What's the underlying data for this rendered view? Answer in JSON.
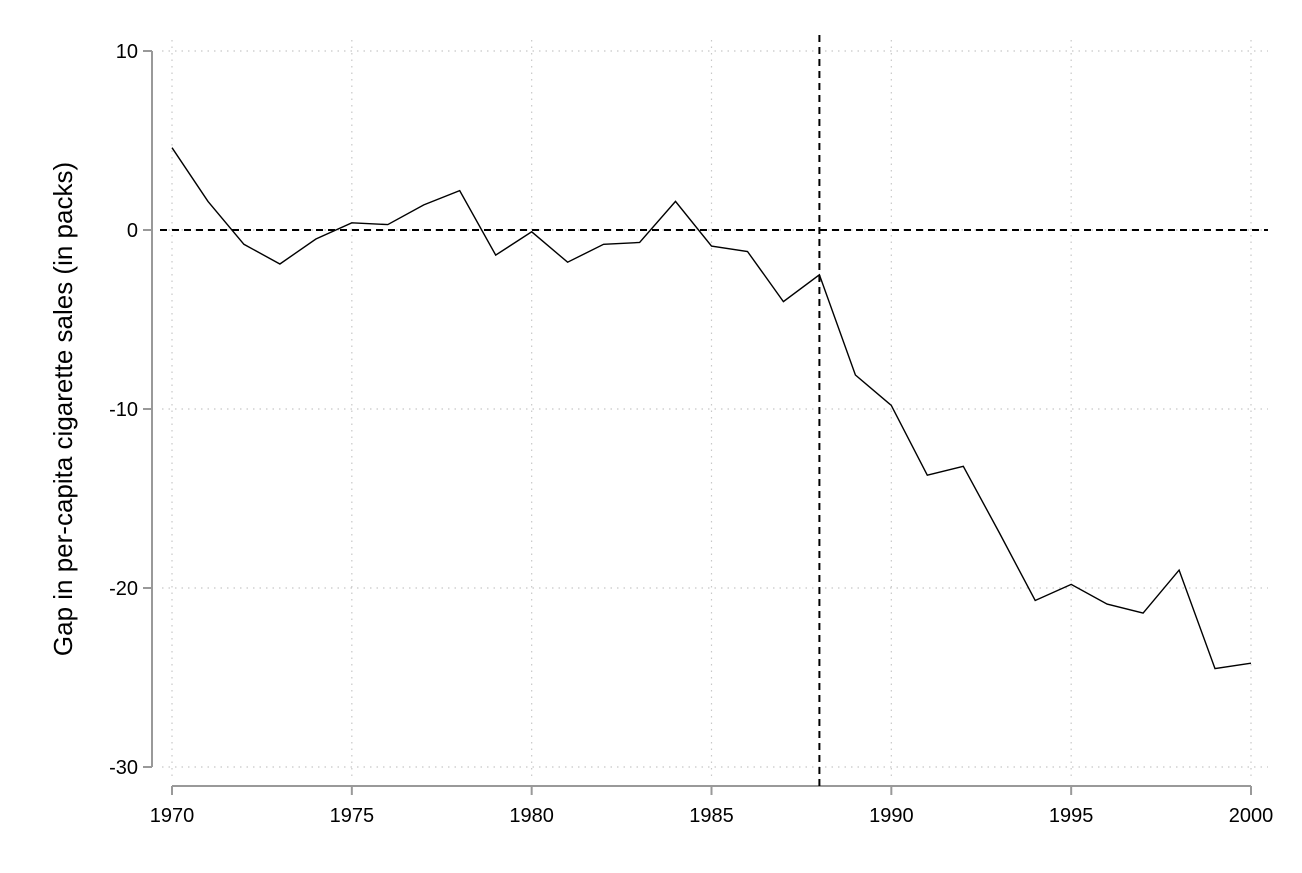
{
  "chart_data": {
    "type": "line",
    "title": "",
    "xlabel": "",
    "ylabel": "Gap in per-capita cigarette sales (in packs)",
    "xlim": [
      1970,
      2000
    ],
    "ylim": [
      -30,
      10
    ],
    "x_ticks": [
      1970,
      1975,
      1980,
      1985,
      1990,
      1995,
      2000
    ],
    "y_ticks": [
      10,
      0,
      -10,
      -20,
      -30
    ],
    "x_tick_labels": [
      "1970",
      "1975",
      "1980",
      "1985",
      "1990",
      "1995",
      "2000"
    ],
    "y_tick_labels": [
      "10",
      "0",
      "-10",
      "-20",
      "-30"
    ],
    "grid": true,
    "series": [
      {
        "x": [
          1970,
          1971,
          1972,
          1973,
          1974,
          1975,
          1976,
          1977,
          1978,
          1979,
          1980,
          1981,
          1982,
          1983,
          1984,
          1985,
          1986,
          1987,
          1988,
          1989,
          1990,
          1991,
          1992,
          1993,
          1994,
          1995,
          1996,
          1997,
          1998,
          1999,
          2000
        ],
        "values": [
          4.6,
          1.6,
          -0.8,
          -1.9,
          -0.5,
          0.4,
          0.3,
          1.4,
          2.2,
          -1.4,
          -0.1,
          -1.8,
          -0.8,
          -0.7,
          1.6,
          -0.9,
          -1.2,
          -4.0,
          -2.5,
          -8.1,
          -9.8,
          -13.7,
          -13.2,
          -16.9,
          -20.7,
          -19.8,
          -20.9,
          -21.4,
          -19.0,
          -24.5,
          -24.2
        ]
      }
    ],
    "reference_lines": [
      {
        "axis": "y",
        "value": 0,
        "style": "dashed"
      },
      {
        "axis": "x",
        "value": 1988,
        "style": "dashed"
      }
    ],
    "colors": {
      "line": "#000000",
      "grid": "#c8c8c8",
      "axis": "#999999"
    }
  }
}
